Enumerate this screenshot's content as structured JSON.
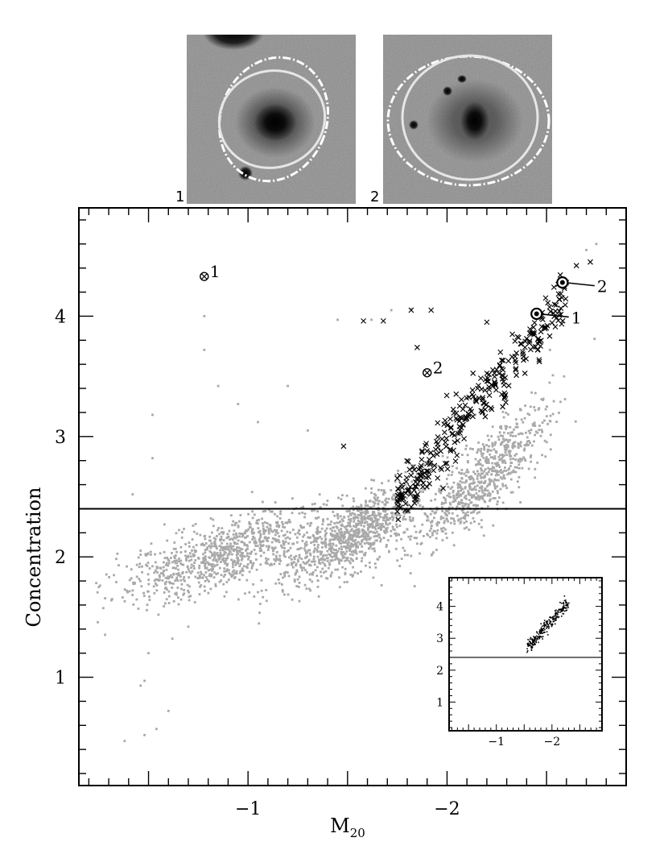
{
  "chart_data": {
    "type": "scatter",
    "title": "",
    "xlabel": "M",
    "xlabel_sub": "20",
    "ylabel": "Concentration",
    "xlim": [
      -0.15,
      -2.9
    ],
    "ylim": [
      0.1,
      4.9
    ],
    "x_ticks": [
      {
        "value": -1,
        "label": "−1"
      },
      {
        "value": -2,
        "label": "−2"
      }
    ],
    "y_ticks": [
      {
        "value": 1,
        "label": "1"
      },
      {
        "value": 2,
        "label": "2"
      },
      {
        "value": 3,
        "label": "3"
      },
      {
        "value": 4,
        "label": "4"
      }
    ],
    "threshold_line": {
      "y": 2.4
    },
    "background_colors": {
      "gray_points": "#a9a9a9",
      "cross_points": "#000000"
    },
    "gray_outliers": [
      [
        -0.35,
        1.93
      ],
      [
        -0.42,
        2.52
      ],
      [
        -0.52,
        3.18
      ],
      [
        -0.52,
        2.82
      ],
      [
        -0.58,
        2.27
      ],
      [
        -0.55,
        1.52
      ],
      [
        -0.62,
        1.32
      ],
      [
        -0.5,
        1.2
      ],
      [
        -0.48,
        0.97
      ],
      [
        -0.46,
        0.93
      ],
      [
        -0.54,
        0.57
      ],
      [
        -0.48,
        0.52
      ],
      [
        -0.38,
        0.47
      ],
      [
        -0.6,
        0.72
      ],
      [
        -0.7,
        1.42
      ],
      [
        -0.78,
        4.0
      ],
      [
        -0.78,
        3.72
      ],
      [
        -0.85,
        3.42
      ],
      [
        -0.95,
        3.27
      ],
      [
        -1.2,
        3.42
      ],
      [
        -1.45,
        3.97
      ],
      [
        -1.72,
        4.05
      ],
      [
        -1.82,
        4.06
      ],
      [
        -1.62,
        3.97
      ],
      [
        -2.9,
        4.78
      ],
      [
        -2.75,
        4.6
      ],
      [
        -2.7,
        4.55
      ],
      [
        -1.3,
        3.05
      ],
      [
        -1.05,
        3.12
      ]
    ],
    "gray_trend": [
      {
        "x_center": -0.9,
        "y_slope": 0.5,
        "y_at_x_neg1": 2.07,
        "x_spread": 0.55,
        "y_spread": 0.14,
        "n": 900
      },
      {
        "x_center": -1.55,
        "y_slope": 0.9,
        "y_at_x_neg1": 1.7,
        "x_spread": 0.35,
        "y_spread": 0.14,
        "n": 900
      },
      {
        "x_center": -2.2,
        "y_slope": 1.45,
        "y_at_x_neg1": 0.95,
        "x_spread": 0.32,
        "y_spread": 0.16,
        "n": 700
      }
    ],
    "cross_trend": {
      "x_range": [
        -1.75,
        -2.6
      ],
      "y_at_x_neg1_75": 2.45,
      "y_slope": 2.05,
      "y_spread": 0.12,
      "n": 320
    },
    "cross_outliers": [
      [
        -1.58,
        3.96
      ],
      [
        -1.68,
        3.96
      ],
      [
        -1.85,
        3.74
      ],
      [
        -1.82,
        4.05
      ],
      [
        -1.92,
        4.05
      ],
      [
        -1.48,
        2.92
      ],
      [
        -2.2,
        3.95
      ],
      [
        -2.65,
        4.42
      ],
      [
        -2.72,
        4.45
      ],
      [
        -2.6,
        4.28
      ]
    ],
    "highlighted": [
      {
        "label": "1",
        "x": -0.78,
        "y": 4.33,
        "marker": "otimes",
        "label_side": "right"
      },
      {
        "label": "2",
        "x": -1.9,
        "y": 3.53,
        "marker": "otimes",
        "label_side": "right"
      },
      {
        "label": "1",
        "x": -2.45,
        "y": 4.02,
        "marker": "circled-dot",
        "label_side": "leader"
      },
      {
        "label": "2",
        "x": -2.58,
        "y": 4.28,
        "marker": "circled-dot",
        "label_side": "leader"
      }
    ],
    "inset": {
      "xlim": [
        -0.15,
        -2.9
      ],
      "ylim": [
        0.1,
        4.9
      ],
      "x_ticks": [
        {
          "value": -1,
          "label": "−1"
        },
        {
          "value": -2,
          "label": "−2"
        }
      ],
      "y_ticks": [
        {
          "value": 1,
          "label": "1"
        },
        {
          "value": 2,
          "label": "2"
        },
        {
          "value": 3,
          "label": "3"
        },
        {
          "value": 4,
          "label": "4"
        }
      ],
      "threshold_line": {
        "y": 2.4
      },
      "trend": {
        "x_range": [
          -1.55,
          -2.3
        ],
        "y_at_start": 2.7,
        "y_slope": 1.9,
        "spread": 0.1,
        "n": 260
      }
    }
  },
  "stamps": [
    {
      "label": "1"
    },
    {
      "label": "2"
    }
  ]
}
